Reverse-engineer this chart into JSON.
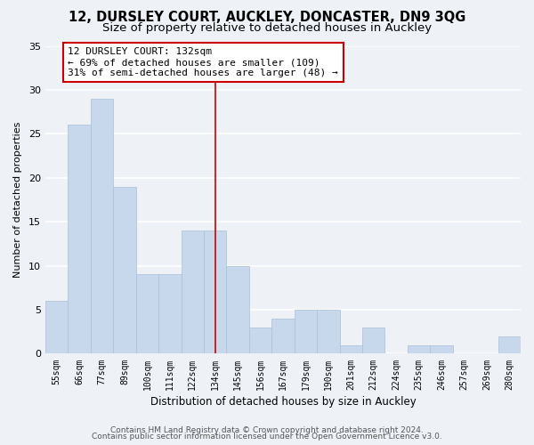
{
  "title1": "12, DURSLEY COURT, AUCKLEY, DONCASTER, DN9 3QG",
  "title2": "Size of property relative to detached houses in Auckley",
  "xlabel": "Distribution of detached houses by size in Auckley",
  "ylabel": "Number of detached properties",
  "bar_color": "#c8d8ec",
  "bar_edge_color": "#a8c0d8",
  "categories": [
    "55sqm",
    "66sqm",
    "77sqm",
    "89sqm",
    "100sqm",
    "111sqm",
    "122sqm",
    "134sqm",
    "145sqm",
    "156sqm",
    "167sqm",
    "179sqm",
    "190sqm",
    "201sqm",
    "212sqm",
    "224sqm",
    "235sqm",
    "246sqm",
    "257sqm",
    "269sqm",
    "280sqm"
  ],
  "values": [
    6,
    26,
    29,
    19,
    9,
    9,
    14,
    14,
    10,
    3,
    4,
    5,
    5,
    1,
    3,
    0,
    1,
    1,
    0,
    0,
    2
  ],
  "vline_index": 7,
  "vline_color": "#cc0000",
  "annotation_title": "12 DURSLEY COURT: 132sqm",
  "annotation_line1": "← 69% of detached houses are smaller (109)",
  "annotation_line2": "31% of semi-detached houses are larger (48) →",
  "annotation_box_edge": "#cc0000",
  "ylim": [
    0,
    35
  ],
  "yticks": [
    0,
    5,
    10,
    15,
    20,
    25,
    30,
    35
  ],
  "footer1": "Contains HM Land Registry data © Crown copyright and database right 2024.",
  "footer2": "Contains public sector information licensed under the Open Government Licence v3.0.",
  "background_color": "#eef2f7",
  "grid_color": "#ffffff",
  "title1_fontsize": 10.5,
  "title2_fontsize": 9.5,
  "xlabel_fontsize": 8.5,
  "ylabel_fontsize": 8,
  "tick_fontsize": 7,
  "annotation_fontsize": 8,
  "footer_fontsize": 6.5
}
